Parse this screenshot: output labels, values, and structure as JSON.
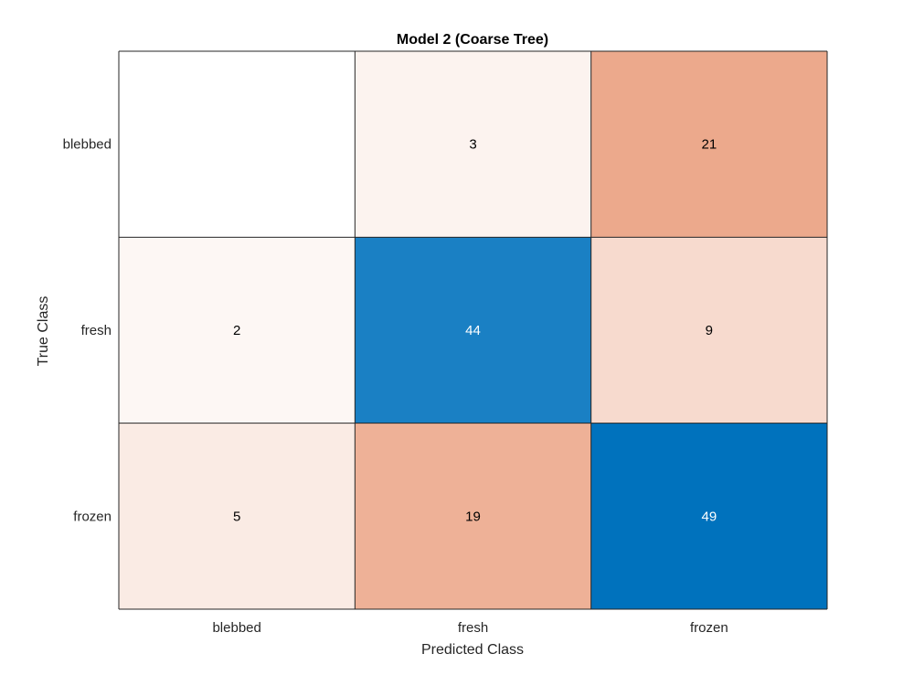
{
  "chart_data": {
    "type": "heatmap",
    "title": "Model 2 (Coarse Tree)",
    "xlabel": "Predicted Class",
    "ylabel": "True Class",
    "x_categories": [
      "blebbed",
      "fresh",
      "frozen"
    ],
    "y_categories": [
      "blebbed",
      "fresh",
      "frozen"
    ],
    "matrix": [
      [
        null,
        3,
        21
      ],
      [
        2,
        44,
        9
      ],
      [
        5,
        19,
        49
      ]
    ],
    "colors": {
      "diagonal": "#0072bd",
      "off_diagonal": "#d95319",
      "grid_line": "#262626"
    }
  }
}
